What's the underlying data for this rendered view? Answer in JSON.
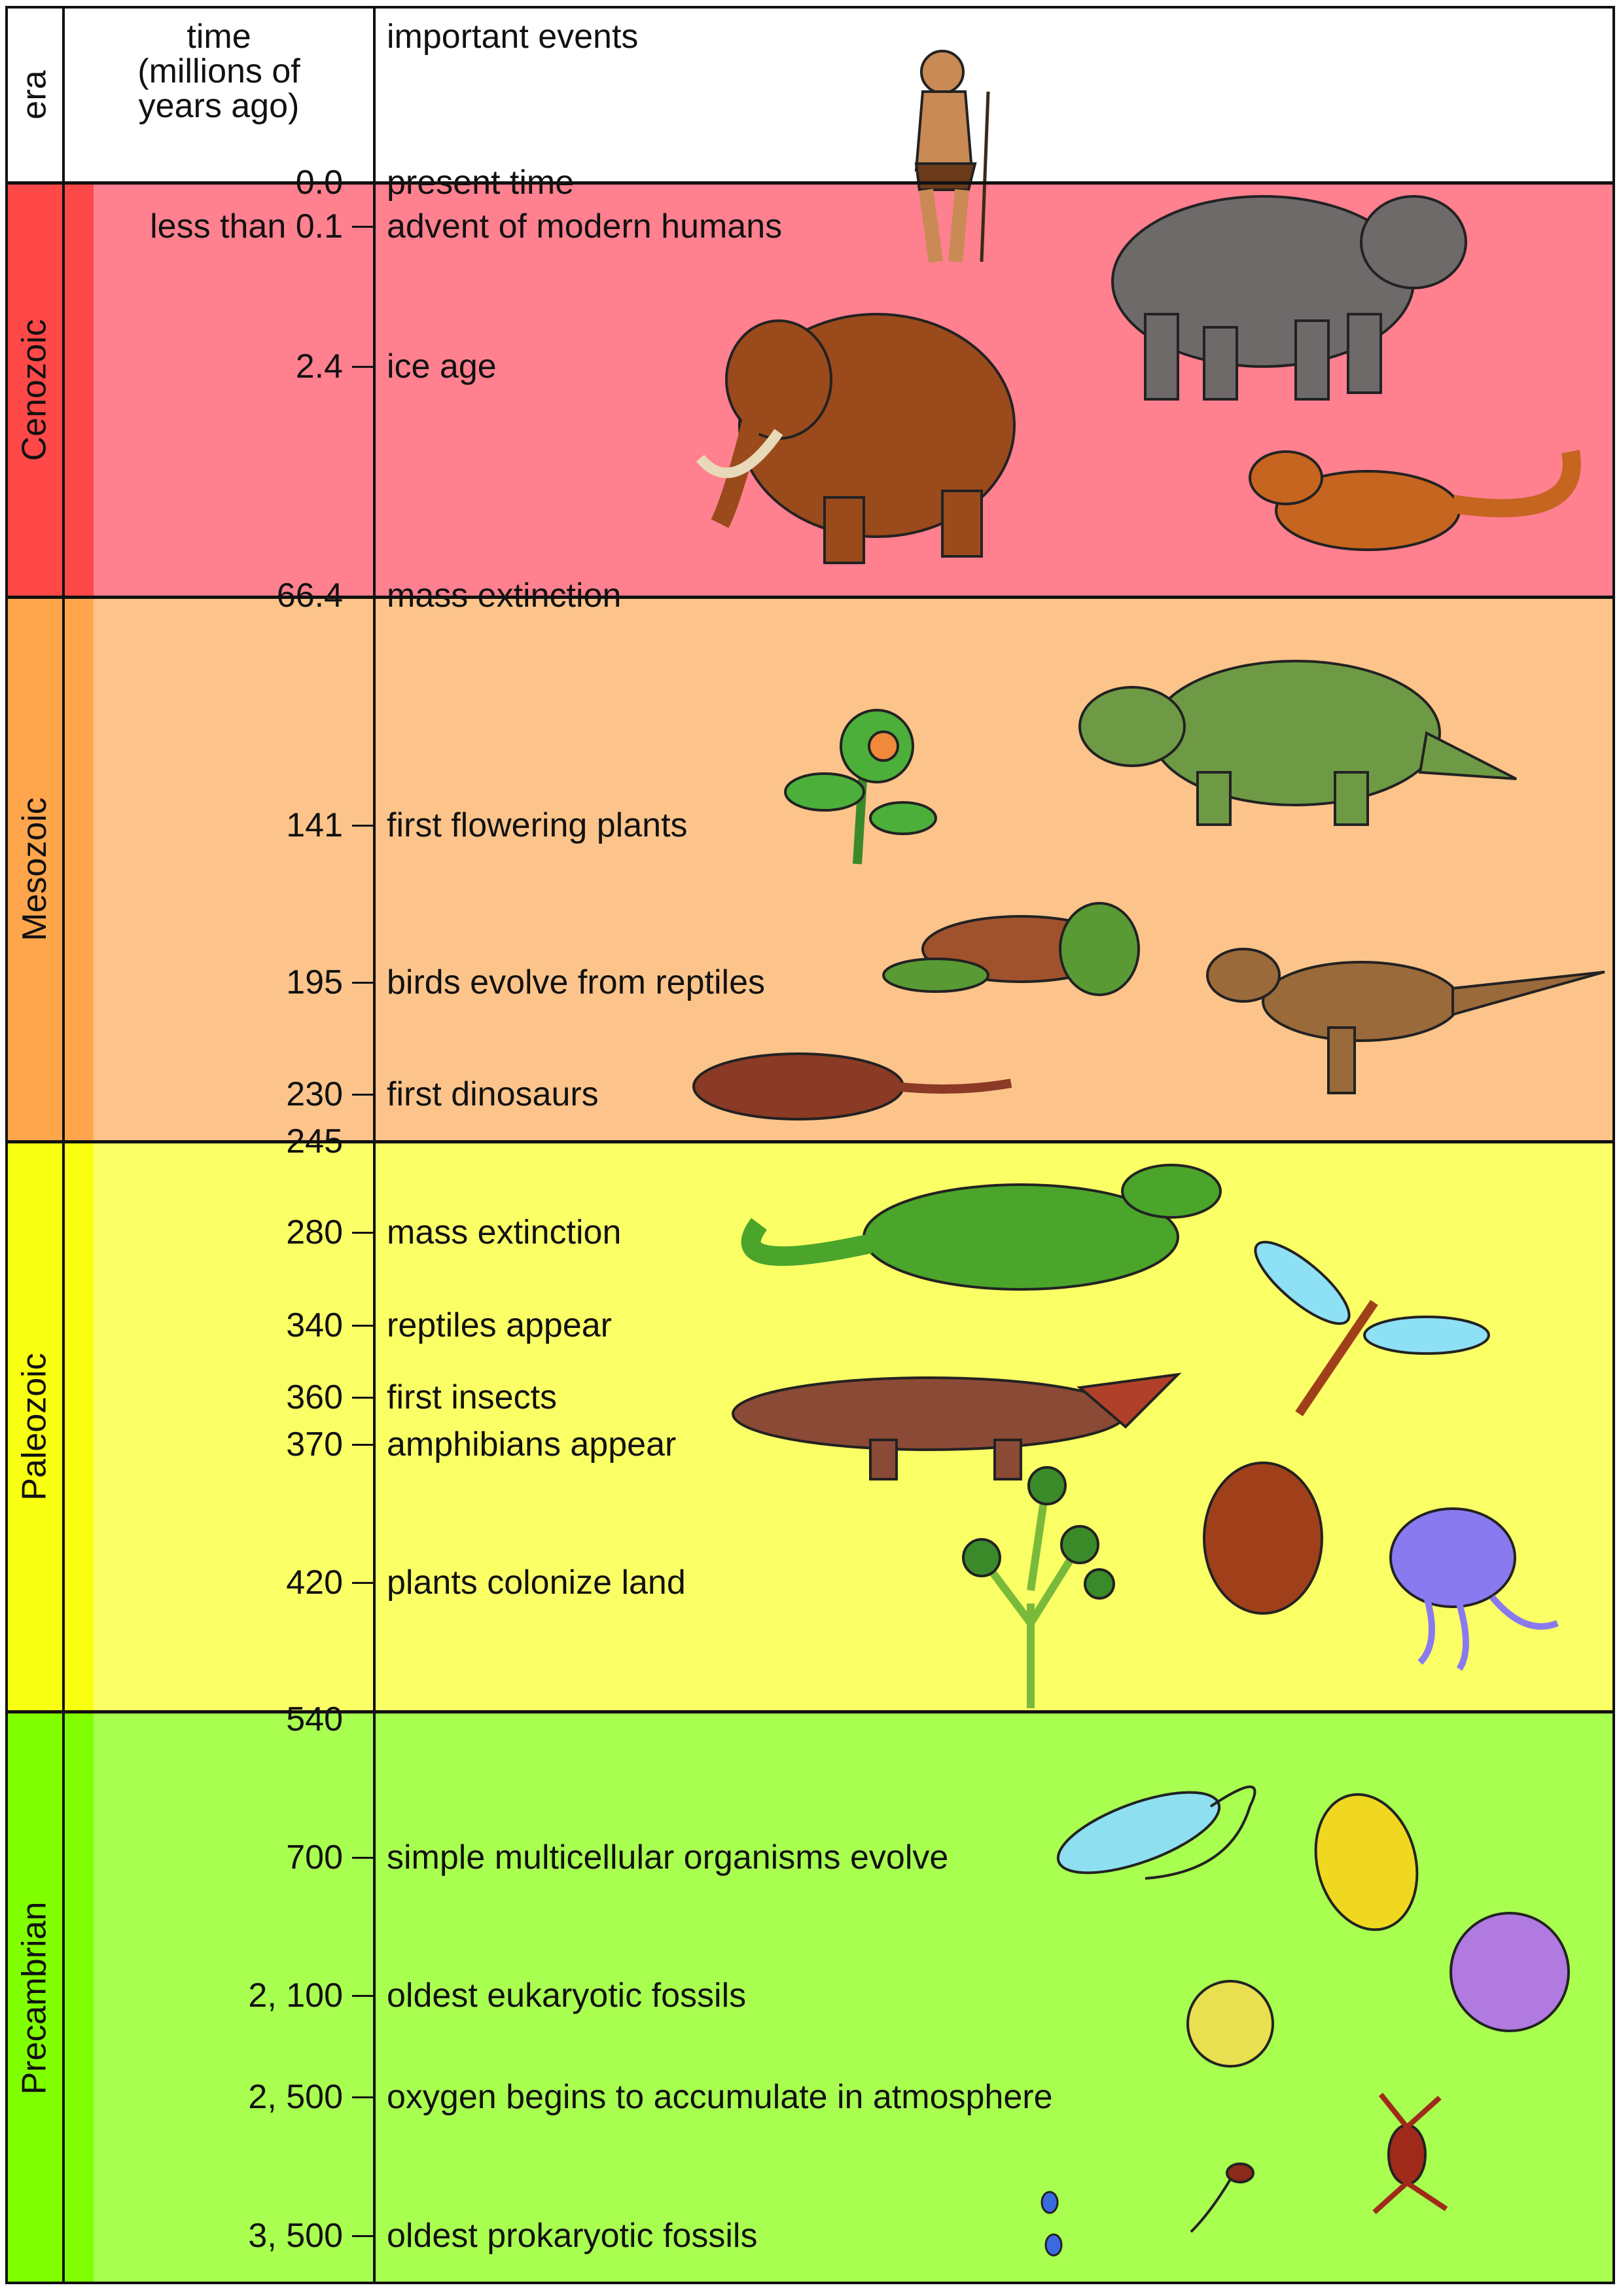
{
  "header": {
    "era": "era",
    "time": "time\n(millions of\nyears ago)",
    "events": "important events"
  },
  "eras": [
    {
      "name": "Cenozoic",
      "strip_color": "#ff4848",
      "bg_color": "#ff808f"
    },
    {
      "name": "Mesozoic",
      "strip_color": "#ffa64d",
      "bg_color": "#fcc48a"
    },
    {
      "name": "Paleozoic",
      "strip_color": "#f8ff10",
      "bg_color": "#fbff66"
    },
    {
      "name": "Precambrian",
      "strip_color": "#80ff00",
      "bg_color": "#a8ff50"
    }
  ],
  "boundaries": [
    "0.0",
    "66.4",
    "245",
    "540"
  ],
  "events": [
    {
      "time": "",
      "event": "present time"
    },
    {
      "time": "less than 0.1",
      "event": "advent of modern humans"
    },
    {
      "time": "2.4",
      "event": "ice age"
    },
    {
      "time": "",
      "event": "mass extinction"
    },
    {
      "time": "141",
      "event": "first flowering plants"
    },
    {
      "time": "195",
      "event": "birds evolve from reptiles"
    },
    {
      "time": "230",
      "event": "first dinosaurs"
    },
    {
      "time": "280",
      "event": "mass extinction"
    },
    {
      "time": "340",
      "event": "reptiles appear"
    },
    {
      "time": "360",
      "event": "first insects"
    },
    {
      "time": "370",
      "event": "amphibians appear"
    },
    {
      "time": "420",
      "event": "plants colonize land"
    },
    {
      "time": "700",
      "event": "simple multicellular organisms evolve"
    },
    {
      "time": "2, 100",
      "event": "oldest eukaryotic fossils"
    },
    {
      "time": "2, 500",
      "event": "oxygen begins to accumulate in atmosphere"
    },
    {
      "time": "3, 500",
      "event": "oldest prokaryotic fossils"
    }
  ]
}
